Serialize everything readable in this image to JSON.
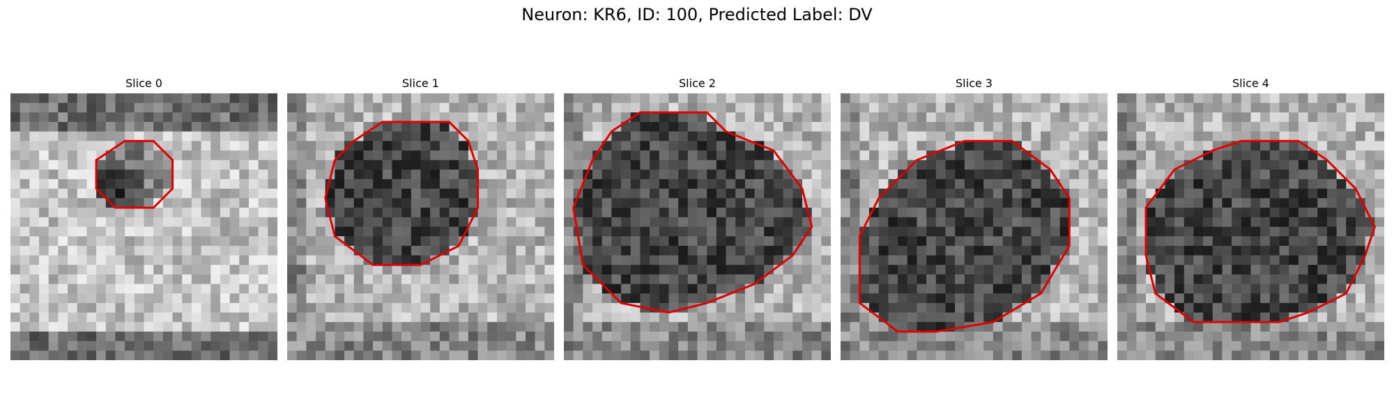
{
  "figure": {
    "title": "Neuron: KR6, ID: 100, Predicted Label: DV"
  },
  "slices": [
    {
      "title": "Slice 0",
      "region": "ring",
      "seed": 11,
      "contour": [
        [
          12,
          5
        ],
        [
          15,
          5
        ],
        [
          17,
          7
        ],
        [
          17,
          10
        ],
        [
          15,
          12
        ],
        [
          11,
          12
        ],
        [
          9,
          10
        ],
        [
          9,
          7
        ]
      ]
    },
    {
      "title": "Slice 1",
      "region": "round",
      "seed": 23,
      "contour": [
        [
          10,
          3
        ],
        [
          17,
          3
        ],
        [
          19,
          5
        ],
        [
          20,
          8
        ],
        [
          20,
          12
        ],
        [
          18,
          16
        ],
        [
          14,
          18
        ],
        [
          9,
          18
        ],
        [
          5,
          15
        ],
        [
          4,
          11
        ],
        [
          5,
          7
        ],
        [
          7,
          5
        ]
      ]
    },
    {
      "title": "Slice 2",
      "region": "large",
      "seed": 37,
      "contour": [
        [
          8,
          2
        ],
        [
          15,
          2
        ],
        [
          17,
          4
        ],
        [
          22,
          6
        ],
        [
          25,
          10
        ],
        [
          26,
          14
        ],
        [
          24,
          17
        ],
        [
          20,
          20
        ],
        [
          15,
          22
        ],
        [
          11,
          23
        ],
        [
          6,
          22
        ],
        [
          2,
          18
        ],
        [
          1,
          12
        ],
        [
          3,
          7
        ],
        [
          5,
          4
        ]
      ]
    },
    {
      "title": "Slice 3",
      "region": "large",
      "seed": 51,
      "contour": [
        [
          13,
          5
        ],
        [
          18,
          5
        ],
        [
          22,
          8
        ],
        [
          24,
          11
        ],
        [
          24,
          16
        ],
        [
          21,
          21
        ],
        [
          16,
          24
        ],
        [
          10,
          25
        ],
        [
          6,
          25
        ],
        [
          2,
          22
        ],
        [
          2,
          15
        ],
        [
          4,
          11
        ],
        [
          8,
          7
        ]
      ]
    },
    {
      "title": "Slice 4",
      "region": "large",
      "seed": 67,
      "contour": [
        [
          10,
          6
        ],
        [
          13,
          5
        ],
        [
          19,
          5
        ],
        [
          22,
          7
        ],
        [
          25,
          10
        ],
        [
          27,
          14
        ],
        [
          26,
          17
        ],
        [
          24,
          21
        ],
        [
          20,
          23
        ],
        [
          17,
          24
        ],
        [
          8,
          24
        ],
        [
          4,
          21
        ],
        [
          3,
          17
        ],
        [
          3,
          12
        ],
        [
          6,
          8
        ]
      ]
    }
  ],
  "colors": {
    "contour": "#e00000",
    "background": "#ffffff"
  }
}
